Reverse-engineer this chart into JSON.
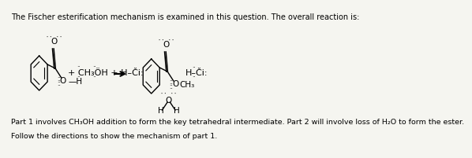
{
  "background_color": "#f5f5f0",
  "title_text": "The Fischer esterification mechanism is examined in this question. The overall reaction is:",
  "title_fontsize": 7.0,
  "body_text1": "Part 1 involves CH₃OH addition to form the key tetrahedral intermediate. Part 2 will involve loss of H₂O to form the ester.",
  "body_text2": "Follow the directions to show the mechanism of part 1.",
  "body_fontsize": 6.8,
  "reagent_text": "+ CH₃ÖH + H–Či:",
  "product_hcl": "H–Či:",
  "product_ch3": "CH₃"
}
